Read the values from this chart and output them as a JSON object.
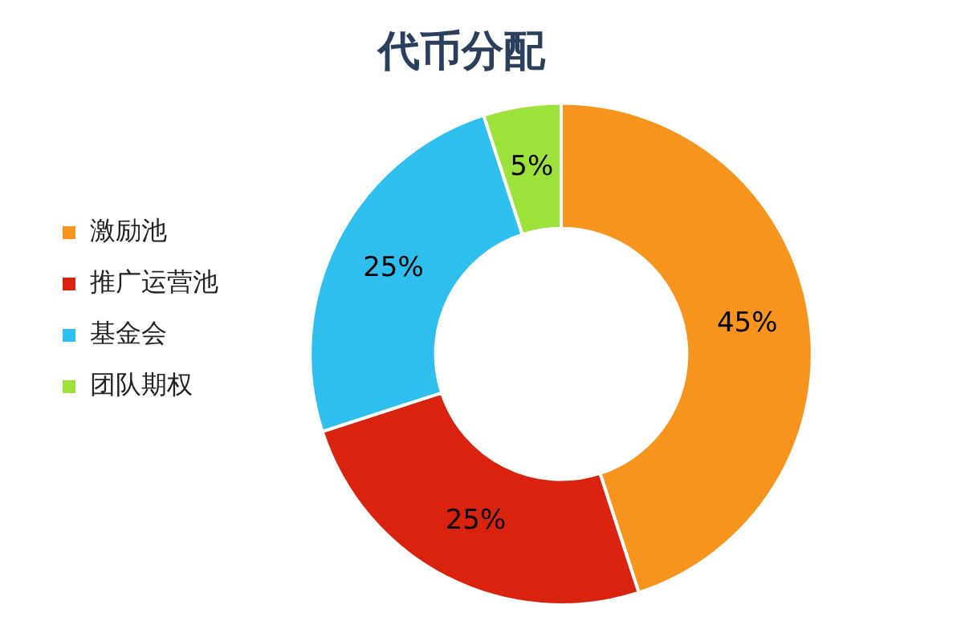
{
  "chart_data": {
    "type": "donut",
    "title": "代币分配",
    "categories": [
      "激励池",
      "推广运营池",
      "基金会",
      "团队期权"
    ],
    "values": [
      45,
      25,
      25,
      5
    ],
    "value_labels": [
      "45%",
      "25%",
      "25%",
      "5%"
    ],
    "colors": [
      "#f7941d",
      "#d9230f",
      "#2ebfef",
      "#9de23a"
    ],
    "legend": "left"
  }
}
